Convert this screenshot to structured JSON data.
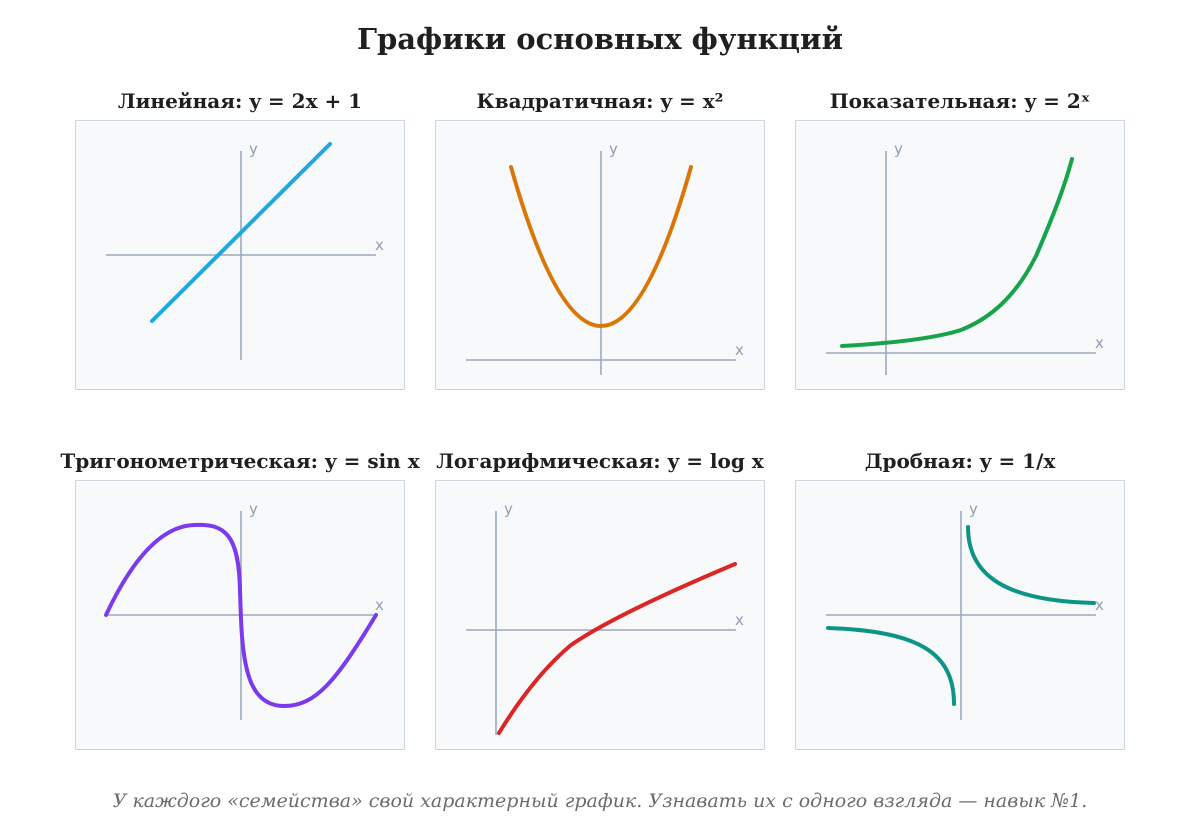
{
  "title": "Графики основных функций",
  "footer": "У каждого «семейства» свой характерный график. Узнавать их с одного взгляда — навык №1.",
  "axis_labels": {
    "x": "x",
    "y": "y"
  },
  "panels": [
    {
      "title": "Линейная: y = 2x + 1",
      "color": "#1ea7e1",
      "icon": "linear-graph"
    },
    {
      "title": "Квадратичная: y = x²",
      "color": "#d97706",
      "icon": "parabola-graph"
    },
    {
      "title": "Показательная: y = 2ˣ",
      "color": "#16a34a",
      "icon": "exponential-graph"
    },
    {
      "title": "Тригонометрическая: y = sin x",
      "color": "#7c3aed",
      "icon": "sine-graph"
    },
    {
      "title": "Логарифмическая: y = log x",
      "color": "#dc2626",
      "icon": "logarithm-graph"
    },
    {
      "title": "Дробная: y = 1/x",
      "color": "#0d9488",
      "icon": "hyperbola-graph"
    }
  ]
}
